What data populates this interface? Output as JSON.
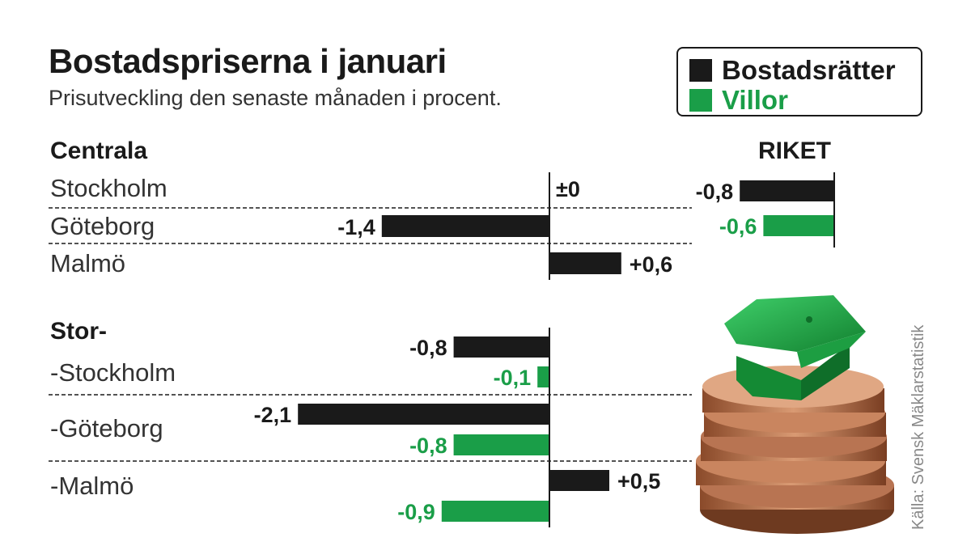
{
  "title": "Bostadspriserna i januari",
  "subtitle": "Prisutveckling den senaste månaden i procent.",
  "legend": [
    {
      "label": "Bostadsrätter",
      "color": "#1a1a1a"
    },
    {
      "label": "Villor",
      "color": "#1a9e48"
    }
  ],
  "source": "Källa: Svensk Mäklarstatistik",
  "colors": {
    "bostadsratter": "#1a1a1a",
    "villor": "#1a9e48"
  },
  "chart_data": [
    {
      "type": "bar",
      "group_label": "Centrala",
      "series": [
        "Bostadsrätter"
      ],
      "rows": [
        {
          "category": "Stockholm",
          "values": [
            {
              "series": "Bostadsrätter",
              "value": 0,
              "label": "±0"
            }
          ]
        },
        {
          "category": "Göteborg",
          "values": [
            {
              "series": "Bostadsrätter",
              "value": -1.4,
              "label": "-1,4"
            }
          ]
        },
        {
          "category": "Malmö",
          "values": [
            {
              "series": "Bostadsrätter",
              "value": 0.6,
              "label": "+0,6"
            }
          ]
        }
      ]
    },
    {
      "type": "bar",
      "group_label": "Stor-",
      "series": [
        "Bostadsrätter",
        "Villor"
      ],
      "rows": [
        {
          "category": "-Stockholm",
          "values": [
            {
              "series": "Bostadsrätter",
              "value": -0.8,
              "label": "-0,8"
            },
            {
              "series": "Villor",
              "value": -0.1,
              "label": "-0,1"
            }
          ]
        },
        {
          "category": "-Göteborg",
          "values": [
            {
              "series": "Bostadsrätter",
              "value": -2.1,
              "label": "-2,1"
            },
            {
              "series": "Villor",
              "value": -0.8,
              "label": "-0,8"
            }
          ]
        },
        {
          "category": "-Malmö",
          "values": [
            {
              "series": "Bostadsrätter",
              "value": 0.5,
              "label": "+0,5"
            },
            {
              "series": "Villor",
              "value": -0.9,
              "label": "-0,9"
            }
          ]
        }
      ]
    },
    {
      "type": "bar",
      "group_label": "RIKET",
      "series": [
        "Bostadsrätter",
        "Villor"
      ],
      "rows": [
        {
          "category": "",
          "values": [
            {
              "series": "Bostadsrätter",
              "value": -0.8,
              "label": "-0,8"
            },
            {
              "series": "Villor",
              "value": -0.6,
              "label": "-0,6"
            }
          ]
        }
      ]
    }
  ]
}
